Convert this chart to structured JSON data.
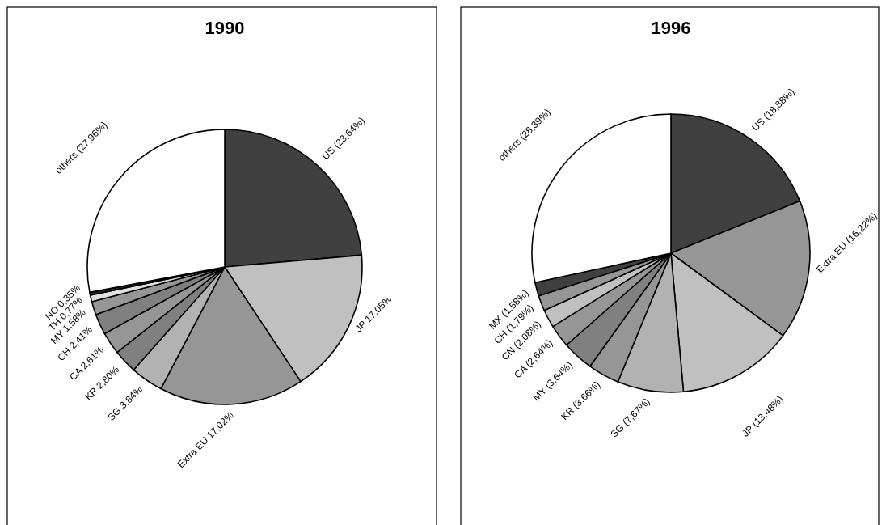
{
  "chart_data": [
    {
      "type": "pie",
      "title": "1990",
      "categories": [
        "US",
        "JP",
        "Extra EU",
        "SG",
        "KR",
        "CA",
        "CH",
        "MY",
        "TH",
        "NO",
        "others"
      ],
      "values": [
        23.64,
        17.05,
        17.02,
        3.84,
        2.8,
        2.61,
        2.41,
        1.58,
        0.77,
        0.35,
        27.96
      ],
      "value_labels": [
        "(23,64%)",
        "17,05%",
        "17,02%",
        "3,84%",
        "2,80%",
        "2,61%",
        "2,41%",
        "1,58%",
        "0,77%",
        "0,35%",
        "(27,96%)"
      ],
      "colors": [
        "#404040",
        "#c0c0c0",
        "#969696",
        "#b2b2b2",
        "#808080",
        "#969696",
        "#808080",
        "#969696",
        "#e0e0e0",
        "#202020",
        "#ffffff"
      ]
    },
    {
      "type": "pie",
      "title": "1996",
      "categories": [
        "US",
        "Extra EU",
        "JP",
        "SG",
        "KR",
        "MY",
        "CA",
        "CN",
        "CH",
        "MX",
        "others"
      ],
      "values": [
        18.88,
        16.22,
        13.48,
        7.67,
        3.66,
        3.64,
        2.64,
        2.08,
        1.79,
        1.58,
        28.39
      ],
      "value_labels": [
        "(18,88%)",
        "(16,22%)",
        "(13,48%)",
        "(7,67%)",
        "(3,66%)",
        "(3,64%)",
        "(2,64%)",
        "(2,08%)",
        "(1,79%)",
        "(1,58%)",
        "(28,39%)"
      ],
      "colors": [
        "#404040",
        "#969696",
        "#c0c0c0",
        "#b2b2b2",
        "#969696",
        "#808080",
        "#969696",
        "#c0c0c0",
        "#969696",
        "#404040",
        "#ffffff"
      ]
    }
  ]
}
